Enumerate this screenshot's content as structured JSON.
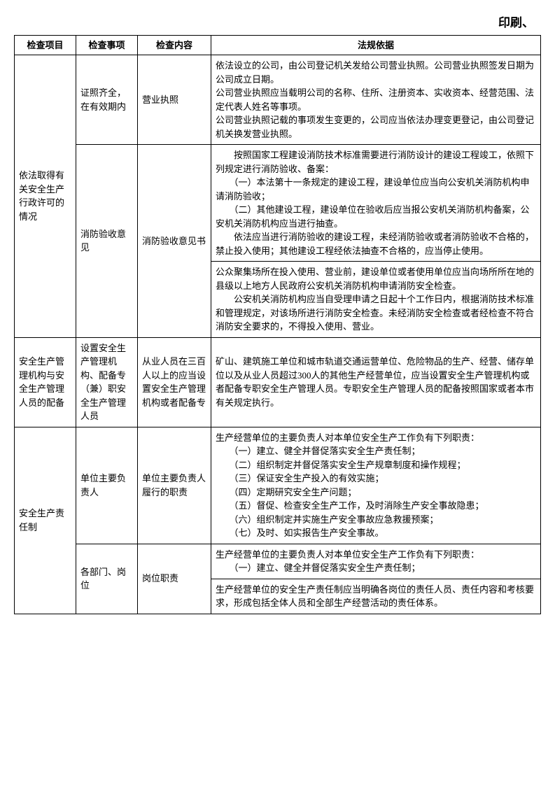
{
  "header_suffix": "印刷、",
  "columns": {
    "c1": "检查项目",
    "c2": "检查事项",
    "c3": "检查内容",
    "c4": "法规依据"
  },
  "rows": {
    "r1": {
      "project": "依法取得有关安全生产行政许可的情况",
      "matter": "证照齐全，在有效期内",
      "content": "营业执照",
      "law": "依法设立的公司，由公司登记机关发给公司营业执照。公司营业执照签发日期为公司成立日期。\n公司营业执照应当载明公司的名称、住所、注册资本、实收资本、经营范围、法定代表人姓名等事项。\n公司营业执照记载的事项发生变更的，公司应当依法办理变更登记，由公司登记机关换发营业执照。"
    },
    "r2": {
      "matter": "消防验收意见",
      "content": "消防验收意见书",
      "law_a": "　　按照国家工程建设消防技术标准需要进行消防设计的建设工程竣工，依照下列规定进行消防验收、备案：\n　　（一）本法第十一条规定的建设工程，建设单位应当向公安机关消防机构申请消防验收；\n　　（二）其他建设工程，建设单位在验收后应当报公安机关消防机构备案，公安机关消防机构应当进行抽查。\n　　依法应当进行消防验收的建设工程，未经消防验收或者消防验收不合格的，禁止投入使用；其他建设工程经依法抽查不合格的，应当停止使用。",
      "law_b": "公众聚集场所在投入使用、营业前，建设单位或者使用单位应当向场所所在地的县级以上地方人民政府公安机关消防机构申请消防安全检查。\n　　公安机关消防机构应当自受理申请之日起十个工作日内，根据消防技术标准和管理规定，对该场所进行消防安全检查。未经消防安全检查或者经检查不符合消防安全要求的，不得投入使用、营业。"
    },
    "r3": {
      "project": "安全生产管理机构与安全生产管理人员的配备",
      "matter": "设置安全生产管理机构、配备专（兼）职安全生产管理人员",
      "content": "从业人员在三百人以上的应当设置安全生产管理机构或者配备专",
      "law": "矿山、建筑施工单位和城市轨道交通运营单位、危险物品的生产、经营、储存单位以及从业人员超过300人的其他生产经营单位，应当设置安全生产管理机构或者配备专职安全生产管理人员。专职安全生产管理人员的配备按照国家或者本市有关规定执行。"
    },
    "r4": {
      "project": "安全生产责任制",
      "matter": "单位主要负责人",
      "content": "单位主要负责人履行的职责",
      "law": "生产经营单位的主要负责人对本单位安全生产工作负有下列职责：\n　　（一）建立、健全并督促落实安全生产责任制；\n　　（二）组织制定并督促落实安全生产规章制度和操作规程；\n　　（三）保证安全生产投入的有效实施；\n　　（四）定期研究安全生产问题；\n　　（五）督促、检查安全生产工作，及时消除生产安全事故隐患；\n　　（六）组织制定并实施生产安全事故应急救援预案；\n　　（七）及时、如实报告生产安全事故。"
    },
    "r5": {
      "matter": "各部门、岗位",
      "content": "岗位职责",
      "law_a": "生产经营单位的主要负责人对本单位安全生产工作负有下列职责：\n　　（一）建立、健全并督促落实安全生产责任制；",
      "law_b": "生产经营单位的安全生产责任制应当明确各岗位的责任人员、责任内容和考核要求，形成包括全体人员和全部生产经营活动的责任体系。"
    }
  }
}
